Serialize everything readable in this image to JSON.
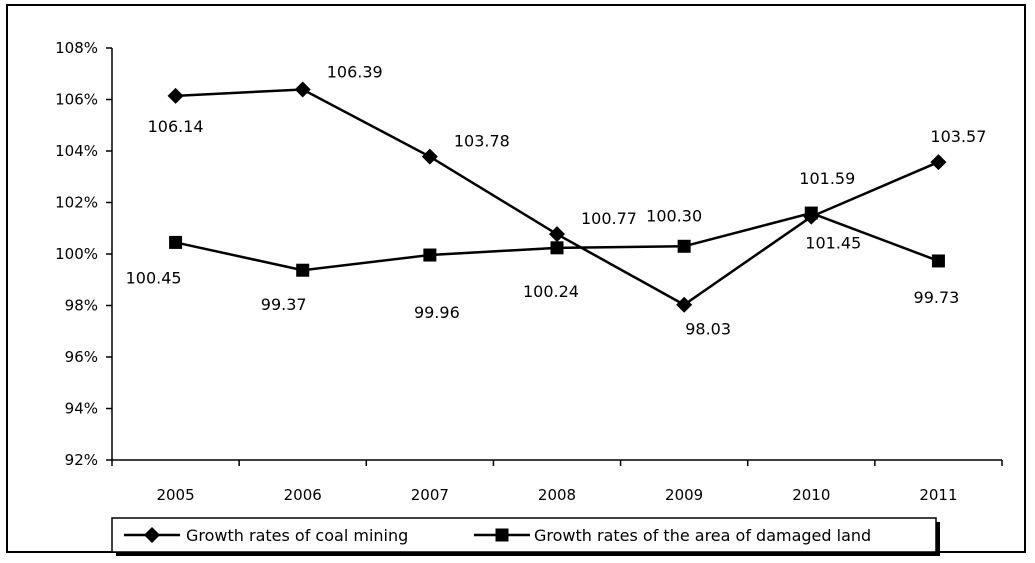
{
  "chart_data": {
    "type": "line",
    "categories": [
      "2005",
      "2006",
      "2007",
      "2008",
      "2009",
      "2010",
      "2011"
    ],
    "ylim": [
      92,
      108
    ],
    "y_ticks": [
      92,
      94,
      96,
      98,
      100,
      102,
      104,
      106,
      108
    ],
    "y_tick_labels": [
      "92%",
      "94%",
      "96%",
      "98%",
      "100%",
      "102%",
      "104%",
      "106%",
      "108%"
    ],
    "grid": false,
    "legend_position": "bottom",
    "series": [
      {
        "name": "Growth rates of coal mining",
        "marker": "diamond",
        "color": "#000000",
        "values": [
          106.14,
          106.39,
          103.78,
          100.77,
          98.03,
          101.45,
          103.57
        ],
        "labels": [
          "106.14",
          "106.39",
          "103.78",
          "100.77",
          "98.03",
          "101.45",
          "103.57"
        ]
      },
      {
        "name": "Growth rates of the area of damaged land",
        "marker": "square",
        "color": "#000000",
        "values": [
          100.45,
          99.37,
          99.96,
          100.24,
          100.3,
          101.59,
          99.73
        ],
        "labels": [
          "100.45",
          "99.37",
          "99.96",
          "100.24",
          "100.30",
          "101.59",
          "99.73"
        ]
      }
    ]
  }
}
